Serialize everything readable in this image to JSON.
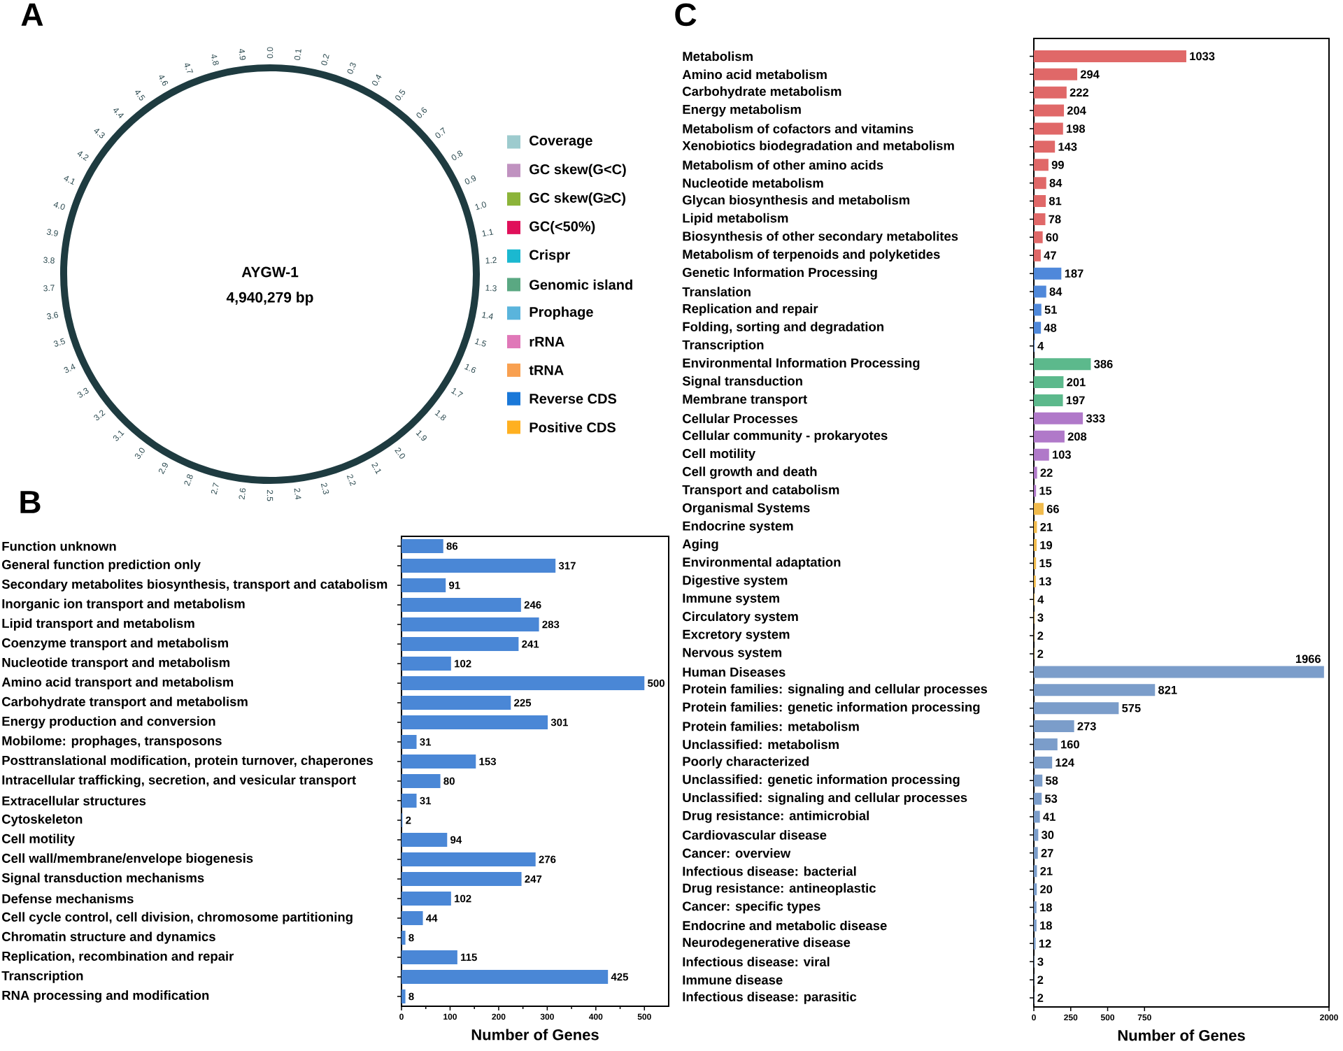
{
  "chart_data": [
    {
      "type": "other",
      "title": "A",
      "annotations": [
        "AYGW-1",
        "4,940,279 bp",
        "0.0",
        "0.1",
        "0.2",
        "0.3",
        "0.4",
        "0.5",
        "0.6",
        "0.7",
        "0.8",
        "0.9",
        "1.0",
        "1.1",
        "1.2",
        "1.3",
        "1.4",
        "1.5",
        "1.6",
        "1.7",
        "1.8",
        "1.9",
        "2.0",
        "2.1",
        "2.2",
        "2.3",
        "2.4",
        "2.5",
        "2.6",
        "2.7",
        "2.8",
        "2.9",
        "3.0",
        "3.1",
        "3.2",
        "3.3",
        "3.4",
        "3.5",
        "3.6",
        "3.7",
        "3.8",
        "3.9",
        "4.0",
        "4.1",
        "4.2",
        "4.3",
        "4.4",
        "4.5",
        "4.6",
        "4.7",
        "4.8",
        "4.9"
      ],
      "categories": [
        "Coverage",
        "GC skew(G<C)",
        "GC skew(G≥C)",
        "GC(<50%)",
        "Crispr",
        "Genomic island",
        "Prophage",
        "rRNA",
        "tRNA",
        "Reverse CDS",
        "Positive CDS"
      ],
      "colors": [
        "#9dcbce",
        "#c092c0",
        "#8cb43a",
        "#e0105a",
        "#1bb8d0",
        "#5aa882",
        "#5ab4dc",
        "#e078b8",
        "#f8a050",
        "#1a78d8",
        "#ffb020"
      ]
    },
    {
      "type": "bar",
      "orientation": "horizontal",
      "title": "B",
      "xlabel": "Number of Genes",
      "categories": [
        "Function unknown",
        "General function prediction only",
        "Secondary metabolites biosynthesis, transport and catabolism",
        "Inorganic ion transport and metabolism",
        "Lipid transport and metabolism",
        "Coenzyme transport and metabolism",
        "Nucleotide transport and metabolism",
        "Amino acid transport and metabolism",
        "Carbohydrate transport and metabolism",
        "Energy production and conversion",
        "Mobilome: prophages, transposons",
        "Posttranslational modification, protein turnover, chaperones",
        "Intracellular trafficking, secretion, and vesicular transport",
        "Extracellular structures",
        "Cytoskeleton",
        "Cell motility",
        "Cell wall/membrane/envelope biogenesis",
        "Signal transduction mechanisms",
        "Defense mechanisms",
        "Cell cycle control, cell division, chromosome partitioning",
        "Chromatin structure and dynamics",
        "Replication, recombination and repair",
        "Transcription",
        "RNA processing and modification"
      ],
      "values": [
        86,
        317,
        91,
        246,
        283,
        241,
        102,
        500,
        225,
        301,
        31,
        153,
        80,
        31,
        2,
        94,
        276,
        247,
        102,
        44,
        8,
        115,
        425,
        8
      ],
      "color": "#4a87d6",
      "xlim": [
        0,
        550
      ],
      "xticks": [
        0,
        100,
        200,
        300,
        400,
        500
      ],
      "data_labels": true
    },
    {
      "type": "bar",
      "orientation": "horizontal",
      "title": "C",
      "xlabel": "Number of Genes",
      "categories": [
        "Metabolism",
        "Amino acid metabolism",
        "Carbohydrate metabolism",
        "Energy metabolism",
        "Metabolism of cofactors and vitamins",
        "Xenobiotics biodegradation and metabolism",
        "Metabolism of other amino acids",
        "Nucleotide metabolism",
        "Glycan biosynthesis and metabolism",
        "Lipid metabolism",
        "Biosynthesis of other secondary metabolites",
        "Metabolism of terpenoids and polyketides",
        "Genetic Information Processing",
        "Translation",
        "Replication and repair",
        "Folding, sorting and degradation",
        "Transcription",
        "Environmental Information Processing",
        "Signal transduction",
        "Membrane transport",
        "Cellular Processes",
        "Cellular community - prokaryotes",
        "Cell motility",
        "Cell growth and death",
        "Transport and catabolism",
        "Organismal Systems",
        "Endocrine system",
        "Aging",
        "Environmental adaptation",
        "Digestive system",
        "Immune system",
        "Circulatory system",
        "Excretory system",
        "Nervous system",
        "Human Diseases",
        "Protein families: signaling and cellular processes",
        "Protein families: genetic information processing",
        "Protein families: metabolism",
        "Unclassified: metabolism",
        "Poorly characterized",
        "Unclassified: genetic information processing",
        "Unclassified: signaling and cellular processes",
        "Drug resistance: antimicrobial",
        "Cardiovascular disease",
        "Cancer: overview",
        "Infectious disease: bacterial",
        "Drug resistance: antineoplastic",
        "Cancer: specific types",
        "Endocrine and metabolic disease",
        "Neurodegenerative disease",
        "Infectious disease: viral",
        "Immune disease",
        "Infectious disease: parasitic"
      ],
      "series": [
        {
          "color": "#e06868",
          "values": [
            1033,
            294,
            222,
            204,
            198,
            143,
            99,
            84,
            81,
            78,
            60,
            47,
            null,
            null,
            null,
            null,
            null,
            null,
            null,
            null,
            null,
            null,
            null,
            null,
            null,
            null,
            null,
            null,
            null,
            null,
            null,
            null,
            null,
            null,
            null,
            null,
            null,
            null,
            null,
            null,
            null,
            null,
            null,
            null,
            null,
            null,
            null,
            null,
            null,
            null,
            null,
            null,
            null
          ]
        },
        {
          "color": "#4f88da",
          "values": [
            null,
            null,
            null,
            null,
            null,
            null,
            null,
            null,
            null,
            null,
            null,
            null,
            187,
            84,
            51,
            48,
            4,
            null,
            null,
            null,
            null,
            null,
            null,
            null,
            null,
            null,
            null,
            null,
            null,
            null,
            null,
            null,
            null,
            null,
            null,
            null,
            null,
            null,
            null,
            null,
            null,
            null,
            null,
            null,
            null,
            null,
            null,
            null,
            null,
            null,
            null,
            null,
            null
          ]
        },
        {
          "color": "#5cb98c",
          "values": [
            null,
            null,
            null,
            null,
            null,
            null,
            null,
            null,
            null,
            null,
            null,
            null,
            null,
            null,
            null,
            null,
            null,
            386,
            201,
            197,
            null,
            null,
            null,
            null,
            null,
            null,
            null,
            null,
            null,
            null,
            null,
            null,
            null,
            null,
            null,
            null,
            null,
            null,
            null,
            null,
            null,
            null,
            null,
            null,
            null,
            null,
            null,
            null,
            null,
            null,
            null,
            null,
            null
          ]
        },
        {
          "color": "#b079c9",
          "values": [
            null,
            null,
            null,
            null,
            null,
            null,
            null,
            null,
            null,
            null,
            null,
            null,
            null,
            null,
            null,
            null,
            null,
            null,
            null,
            null,
            333,
            208,
            103,
            22,
            15,
            null,
            null,
            null,
            null,
            null,
            null,
            null,
            null,
            null,
            null,
            null,
            null,
            null,
            null,
            null,
            null,
            null,
            null,
            null,
            null,
            null,
            null,
            null,
            null,
            null,
            null,
            null,
            null
          ]
        },
        {
          "color": "#f1bb4c",
          "values": [
            null,
            null,
            null,
            null,
            null,
            null,
            null,
            null,
            null,
            null,
            null,
            null,
            null,
            null,
            null,
            null,
            null,
            null,
            null,
            null,
            null,
            null,
            null,
            null,
            null,
            66,
            21,
            19,
            15,
            13,
            4,
            3,
            2,
            2,
            null,
            null,
            null,
            null,
            null,
            null,
            null,
            null,
            null,
            null,
            null,
            null,
            null,
            null,
            null,
            null,
            null,
            null,
            null
          ]
        },
        {
          "color": "#7b9dca",
          "values": [
            null,
            null,
            null,
            null,
            null,
            null,
            null,
            null,
            null,
            null,
            null,
            null,
            null,
            null,
            null,
            null,
            null,
            null,
            null,
            null,
            null,
            null,
            null,
            null,
            null,
            null,
            null,
            null,
            null,
            null,
            null,
            null,
            null,
            null,
            1966,
            821,
            575,
            273,
            160,
            124,
            58,
            53,
            41,
            30,
            27,
            21,
            20,
            18,
            18,
            12,
            3,
            2,
            2
          ]
        }
      ],
      "xlim": [
        0,
        2000
      ],
      "xticks": [
        0,
        250,
        500,
        750,
        2000
      ],
      "data_labels": true
    }
  ]
}
